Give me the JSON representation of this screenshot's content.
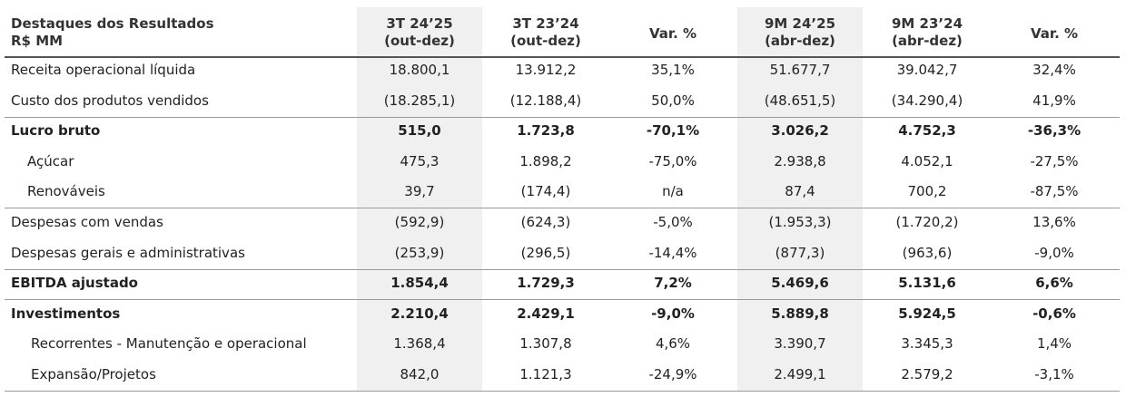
{
  "header": {
    "title": [
      "Destaques dos Resultados",
      "R$ MM"
    ],
    "columns": [
      [
        "3T 24’25",
        "(out-dez)"
      ],
      [
        "3T 23’24",
        "(out-dez)"
      ],
      [
        "Var. %"
      ],
      [
        "9M 24’25",
        "(abr-dez)"
      ],
      [
        "9M 23’24",
        "(abr-dez)"
      ],
      [
        "Var. %"
      ]
    ]
  },
  "table": {
    "rows": [
      [
        "Receita operacional líquida",
        "18.800,1",
        "13.912,2",
        "35,1%",
        "51.677,7",
        "39.042,7",
        "32,4%"
      ],
      [
        "Custo dos produtos vendidos",
        "(18.285,1)",
        "(12.188,4)",
        "50,0%",
        "(48.651,5)",
        "(34.290,4)",
        "41,9%"
      ],
      [
        "Lucro bruto",
        "515,0",
        "1.723,8",
        "-70,1%",
        "3.026,2",
        "4.752,3",
        "-36,3%"
      ],
      [
        "Açúcar",
        "475,3",
        "1.898,2",
        "-75,0%",
        "2.938,8",
        "4.052,1",
        "-27,5%"
      ],
      [
        "Renováveis",
        "39,7",
        "(174,4)",
        "n/a",
        "87,4",
        "700,2",
        "-87,5%"
      ],
      [
        "Despesas com vendas",
        "(592,9)",
        "(624,3)",
        "-5,0%",
        "(1.953,3)",
        "(1.720,2)",
        "13,6%"
      ],
      [
        "Despesas gerais e administrativas",
        "(253,9)",
        "(296,5)",
        "-14,4%",
        "(877,3)",
        "(963,6)",
        "-9,0%"
      ],
      [
        "EBITDA ajustado",
        "1.854,4",
        "1.729,3",
        "7,2%",
        "5.469,6",
        "5.131,6",
        "6,6%"
      ],
      [
        "Investimentos",
        "2.210,4",
        "2.429,1",
        "-9,0%",
        "5.889,8",
        "5.924,5",
        "-0,6%"
      ],
      [
        "Recorrentes - Manutenção e operacional",
        "1.368,4",
        "1.307,8",
        "4,6%",
        "3.390,7",
        "3.345,3",
        "1,4%"
      ],
      [
        "Expansão/Projetos",
        "842,0",
        "1.121,3",
        "-24,9%",
        "2.499,1",
        "2.579,2",
        "-3,1%"
      ]
    ]
  }
}
